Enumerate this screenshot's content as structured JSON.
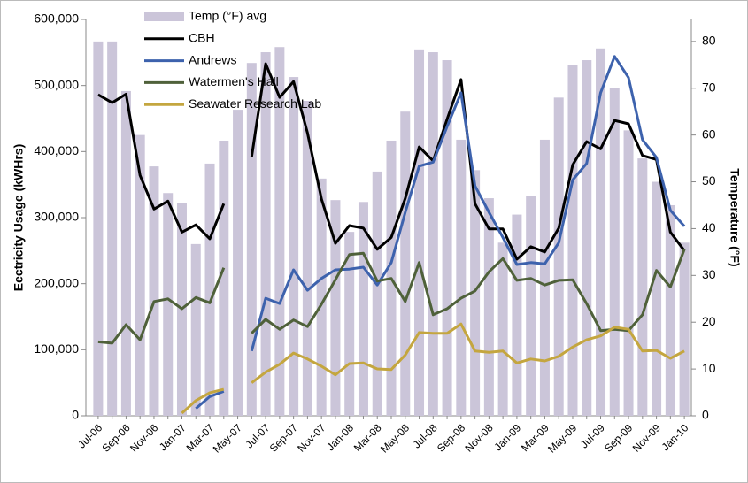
{
  "chart_data": {
    "type": "combo",
    "categories": [
      "Jul-06",
      null,
      "Sep-06",
      null,
      "Nov-06",
      null,
      "Jan-07",
      null,
      "Mar-07",
      null,
      "May-07",
      null,
      "Jul-07",
      null,
      "Sep-07",
      null,
      "Nov-07",
      null,
      "Jan-08",
      null,
      "Mar-08",
      null,
      "May-08",
      null,
      "Jul-08",
      null,
      "Sep-08",
      null,
      "Nov-08",
      null,
      "Jan-09",
      null,
      "Mar-09",
      null,
      "May-09",
      null,
      "Jul-09",
      null,
      "Sep-09",
      null,
      "Nov-09",
      null,
      "Jan-10"
    ],
    "ylabel": "Eectricity Usage (kWHrs)",
    "y2label": "Temperature (°F)",
    "ylim": [
      0,
      600000
    ],
    "yticks": [
      0,
      {
        "value": 100000,
        "label": "100,000"
      },
      {
        "value": 200000,
        "label": "200,000"
      },
      {
        "value": 300000,
        "label": "300,000"
      },
      {
        "value": 400000,
        "label": "400,000"
      },
      {
        "value": 500000,
        "label": "500,000"
      },
      {
        "value": 600000,
        "label": "600,000"
      }
    ],
    "y2lim": [
      0,
      84.7
    ],
    "y2ticks": [
      0,
      10,
      20,
      30,
      40,
      50,
      60,
      70,
      80
    ],
    "series": [
      {
        "name": "Temp (°F) avg",
        "type": "bar",
        "axis": "y2",
        "color": "#cbc5d9",
        "values": [
          80,
          80,
          69.4,
          60,
          53.3,
          47.6,
          45.4,
          36.7,
          53.9,
          58.8,
          65.4,
          75.4,
          77.7,
          78.8,
          72.4,
          67.3,
          50.7,
          46.1,
          39.3,
          45.7,
          52.2,
          58.8,
          65,
          78.3,
          77.7,
          76,
          59,
          52.5,
          46.5,
          37,
          43,
          47,
          59,
          68,
          75,
          76,
          78.5,
          70,
          61,
          55,
          50,
          45,
          37
        ]
      },
      {
        "name": "CBH",
        "type": "line",
        "color": "#000000",
        "values": [
          486000,
          474000,
          487000,
          364000,
          313000,
          325000,
          278000,
          289000,
          268000,
          321000,
          null,
          392000,
          533000,
          482000,
          506000,
          428000,
          328000,
          261000,
          288000,
          284000,
          252000,
          270000,
          329000,
          407000,
          386000,
          449000,
          509000,
          321000,
          283000,
          283000,
          237000,
          256000,
          248000,
          284000,
          380000,
          415000,
          404000,
          447000,
          442000,
          394000,
          388000,
          278000,
          250000
        ]
      },
      {
        "name": "Andrews",
        "type": "line",
        "color": "#3d62ad",
        "values": [
          null,
          null,
          null,
          null,
          null,
          null,
          null,
          11000,
          29000,
          37000,
          null,
          98000,
          178000,
          170000,
          221000,
          190000,
          208000,
          221000,
          222000,
          225000,
          198000,
          232000,
          308000,
          378000,
          384000,
          438000,
          489000,
          348000,
          308000,
          270000,
          229000,
          232000,
          230000,
          262000,
          357000,
          382000,
          489000,
          544000,
          512000,
          418000,
          391000,
          311000,
          287000
        ]
      },
      {
        "name": "Watermen's Hall",
        "type": "line",
        "color": "#4f613a",
        "values": [
          112000,
          110000,
          138000,
          115000,
          173000,
          177000,
          162000,
          179000,
          171000,
          224000,
          null,
          125000,
          146000,
          131000,
          145000,
          135000,
          169000,
          206000,
          244000,
          246000,
          204000,
          208000,
          173000,
          232000,
          153000,
          162000,
          178000,
          189000,
          218000,
          238000,
          205000,
          208000,
          198000,
          205000,
          206000,
          170000,
          129000,
          131000,
          129000,
          153000,
          220000,
          195000,
          252000
        ]
      },
      {
        "name": "Seawater Research Lab",
        "type": "line",
        "color": "#c4a63f",
        "values": [
          null,
          null,
          null,
          null,
          null,
          null,
          4000,
          23000,
          35000,
          40000,
          null,
          50000,
          66000,
          78000,
          95000,
          86000,
          75000,
          62000,
          79000,
          80000,
          71000,
          70000,
          92000,
          126000,
          125000,
          125000,
          139000,
          98000,
          96000,
          98000,
          80000,
          86000,
          83000,
          90000,
          104000,
          115000,
          121000,
          134000,
          131000,
          98000,
          99000,
          87000,
          98000
        ]
      }
    ]
  }
}
